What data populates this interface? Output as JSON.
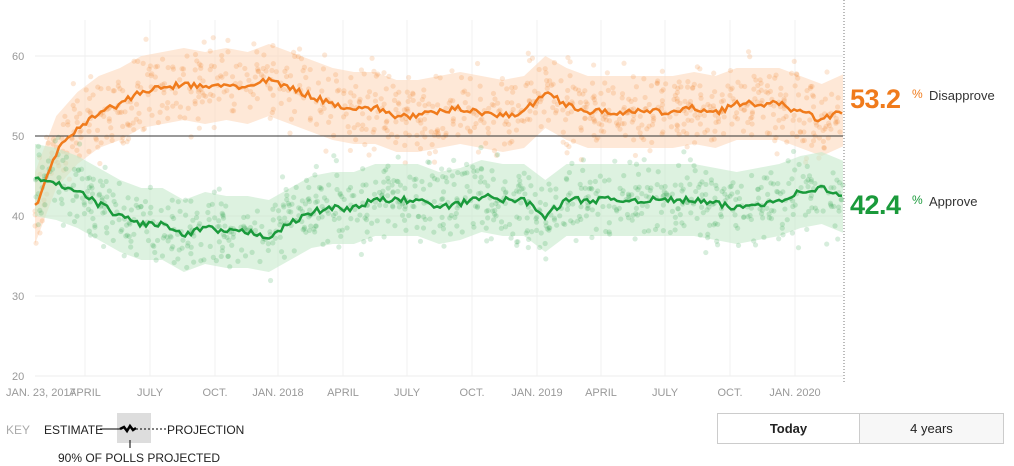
{
  "chart_data": {
    "type": "line",
    "title": "",
    "xlabel": "",
    "ylabel": "",
    "ylim": [
      20,
      65
    ],
    "y_ticks": [
      "20",
      "30",
      "40",
      "50",
      "60"
    ],
    "x_ticks": [
      "JAN. 23, 2017",
      "APRIL",
      "JULY",
      "OCT.",
      "JAN. 2018",
      "APRIL",
      "JULY",
      "OCT.",
      "JAN. 2019",
      "APRIL",
      "JULY",
      "OCT.",
      "JAN. 2020"
    ],
    "x_months": [
      "2017-01",
      "2017-02",
      "2017-03",
      "2017-04",
      "2017-05",
      "2017-06",
      "2017-07",
      "2017-08",
      "2017-09",
      "2017-10",
      "2017-11",
      "2017-12",
      "2018-01",
      "2018-02",
      "2018-03",
      "2018-04",
      "2018-05",
      "2018-06",
      "2018-07",
      "2018-08",
      "2018-09",
      "2018-10",
      "2018-11",
      "2018-12",
      "2019-01",
      "2019-02",
      "2019-03",
      "2019-04",
      "2019-05",
      "2019-06",
      "2019-07",
      "2019-08",
      "2019-09",
      "2019-10",
      "2019-11",
      "2019-12",
      "2020-01",
      "2020-02",
      "2020-03"
    ],
    "series": [
      {
        "name": "Disapprove",
        "color": "#f07b1c",
        "band_color": "#fdd9bd",
        "final": "53.2",
        "values": [
          41,
          48,
          51,
          53,
          54,
          55.5,
          56,
          56.5,
          56,
          56.5,
          56,
          57,
          56,
          55,
          54,
          53.5,
          53.5,
          52.5,
          52.5,
          53,
          53.5,
          53,
          52.5,
          53,
          55.5,
          54,
          53,
          53,
          53,
          53,
          53,
          53.5,
          53,
          54,
          54,
          54,
          53,
          52,
          53.2
        ]
      },
      {
        "name": "Approve",
        "color": "#1a9a3b",
        "band_color": "#c6e9cc",
        "final": "42.4",
        "values": [
          44.5,
          44,
          43,
          41.5,
          40,
          39,
          39,
          37.5,
          38.5,
          38,
          38,
          37.5,
          39,
          40.5,
          41,
          41,
          42,
          42,
          42,
          41,
          41.5,
          42.5,
          42,
          42,
          40,
          42,
          42,
          42,
          42,
          42,
          42,
          42,
          41.5,
          41,
          41.5,
          42,
          43,
          43.5,
          42.4
        ]
      }
    ],
    "reference_line": 50,
    "grid": true
  },
  "labels": {
    "pct_sign": "%",
    "disapprove": "Disapprove",
    "approve": "Approve"
  },
  "key": {
    "title": "KEY",
    "estimate": "ESTIMATE",
    "projection": "PROJECTION",
    "band": "90% OF POLLS PROJECTED"
  },
  "buttons": {
    "today": "Today",
    "four_years": "4 years"
  }
}
